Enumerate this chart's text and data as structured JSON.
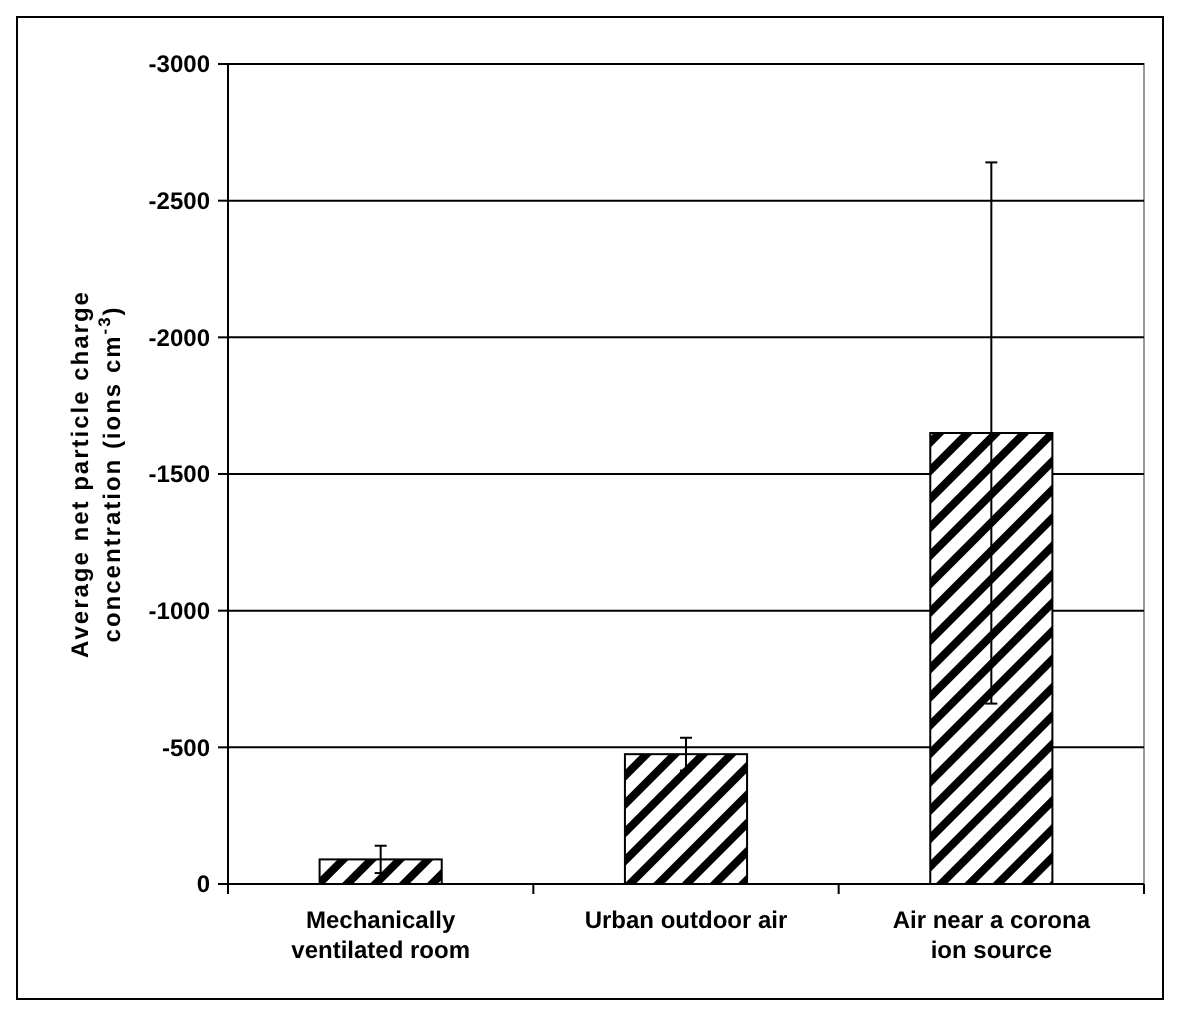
{
  "chart_data": {
    "type": "bar",
    "ylabel": "Average net particle charge concentration (ions cm$^{-3}$)",
    "categories": [
      "Mechanically ventilated room",
      "Urban outdoor air",
      "Air near a corona ion source"
    ],
    "values": [
      -90,
      -475,
      -1650
    ],
    "errors": [
      50,
      60,
      990
    ],
    "color": "#000000",
    "ylim": [
      0,
      -3000
    ],
    "yticks": [
      0,
      -500,
      -1000,
      -1500,
      -2000,
      -2500,
      -3000
    ],
    "grid": "y"
  }
}
